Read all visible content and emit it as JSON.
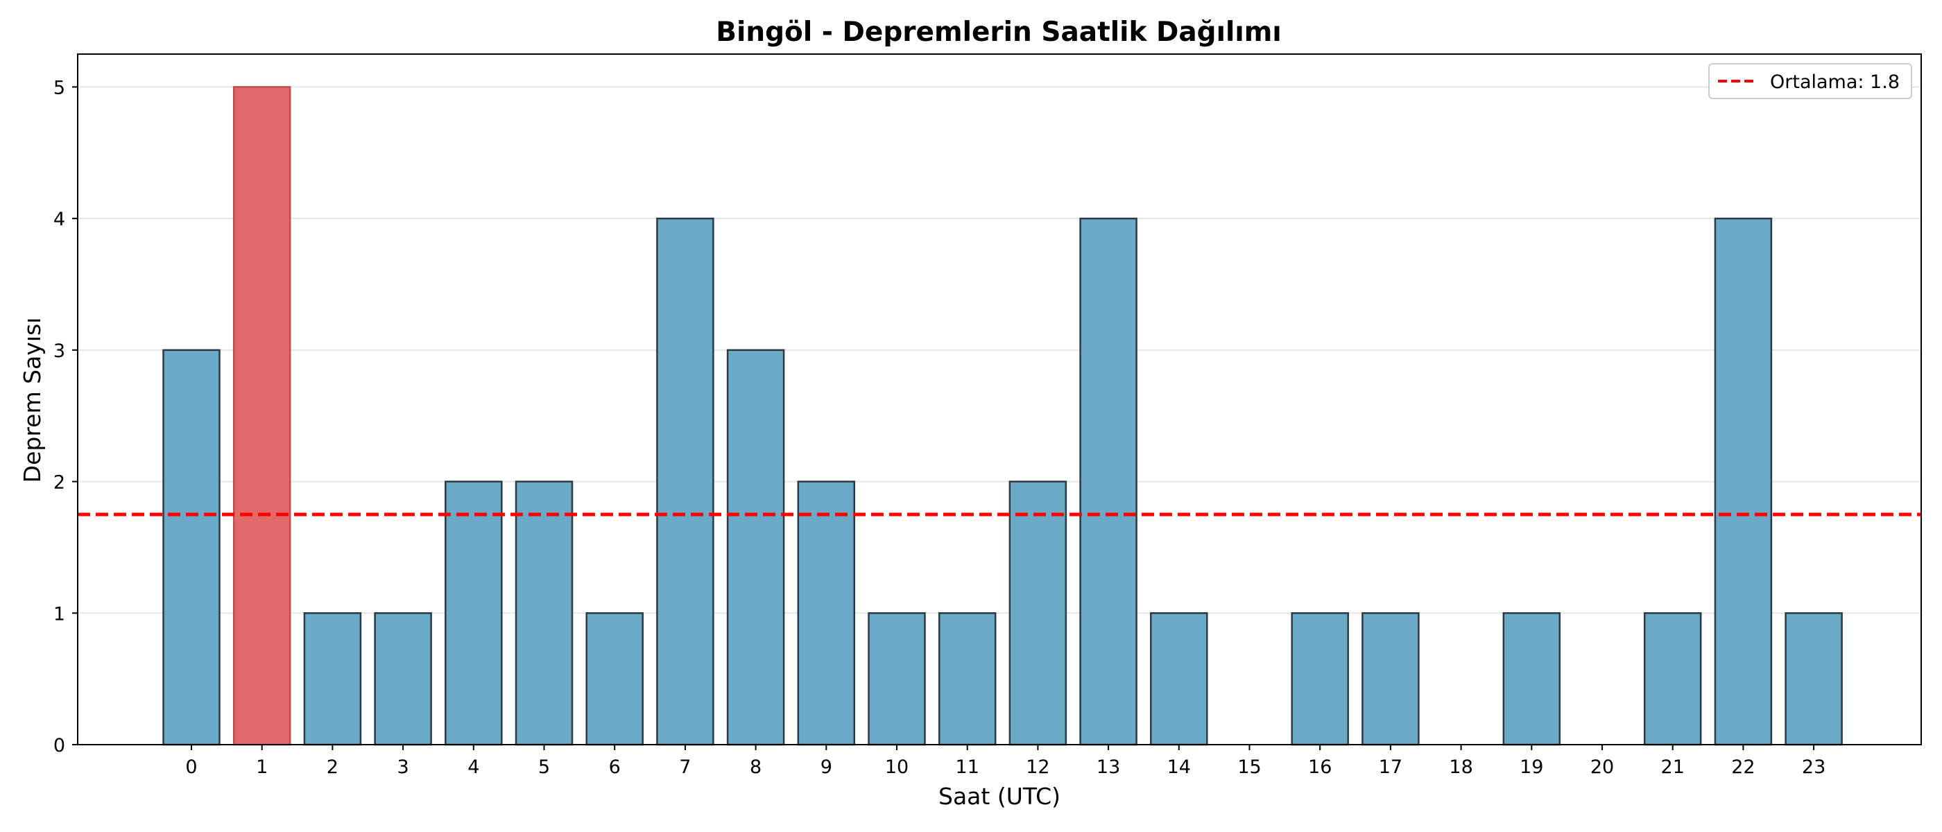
{
  "chart_data": {
    "type": "bar",
    "title": "Bingöl - Depremlerin Saatlik Dağılımı",
    "xlabel": "Saat (UTC)",
    "ylabel": "Deprem Sayısı",
    "categories": [
      "0",
      "1",
      "2",
      "3",
      "4",
      "5",
      "6",
      "7",
      "8",
      "9",
      "10",
      "11",
      "12",
      "13",
      "14",
      "15",
      "16",
      "17",
      "18",
      "19",
      "20",
      "21",
      "22",
      "23"
    ],
    "values": [
      3,
      5,
      1,
      1,
      2,
      2,
      1,
      4,
      3,
      2,
      1,
      1,
      2,
      4,
      1,
      0,
      1,
      1,
      0,
      1,
      0,
      1,
      4,
      1
    ],
    "highlight_index": 1,
    "ylim": [
      0,
      5.25
    ],
    "yticks": [
      "0",
      "1",
      "2",
      "3",
      "4",
      "5"
    ],
    "grid": "y",
    "mean_line": {
      "value": 1.75,
      "label": "Ortalama: 1.8",
      "color": "#ff0000",
      "style": "dashed"
    },
    "legend": {
      "placement": "top-right",
      "entries": [
        "Ortalama: 1.8"
      ]
    },
    "colors": {
      "bar": "#6aaac6",
      "bar_highlight": "#e36a6a",
      "bar_edge": "#2b3a44",
      "mean_line": "#ff0000",
      "grid": "#e6e6e6"
    }
  }
}
